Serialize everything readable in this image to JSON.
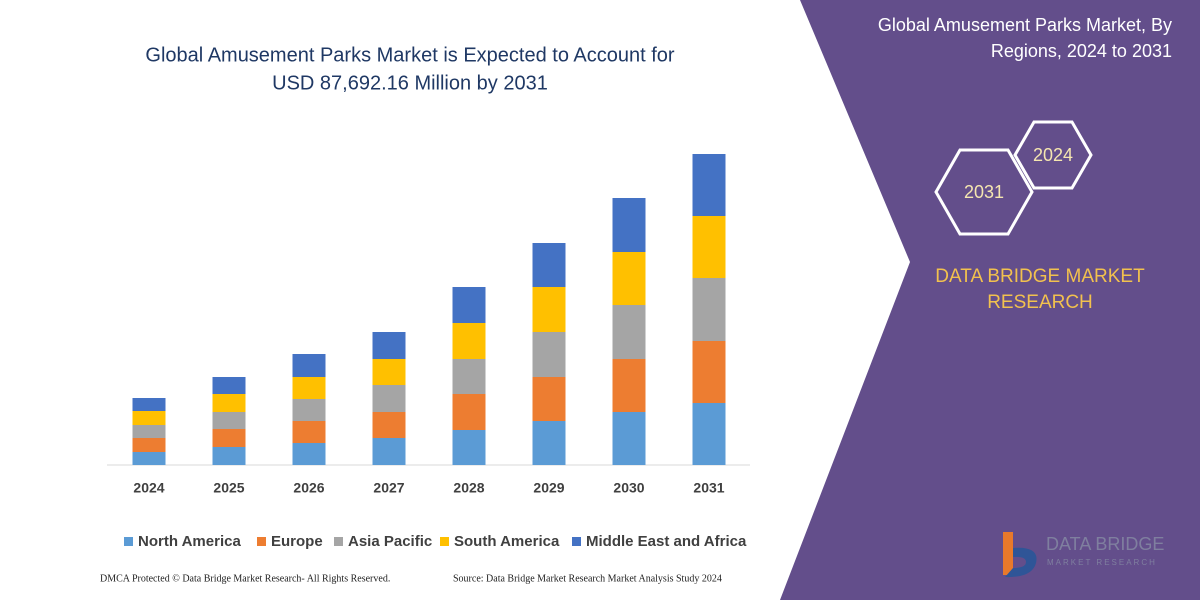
{
  "chart_data": {
    "type": "stacked-bar",
    "title": [
      "Global Amusement Parks Market is Expected to Account for",
      "USD 87,692.16 Million by 2031"
    ],
    "categories": [
      "2024",
      "2025",
      "2026",
      "2027",
      "2028",
      "2029",
      "2030",
      "2031"
    ],
    "series": [
      {
        "name": "North America",
        "color": "#5b9bd5",
        "values": [
          13,
          18,
          22,
          27,
          35,
          44,
          53,
          62
        ]
      },
      {
        "name": "Europe",
        "color": "#ed7d31",
        "values": [
          14,
          18,
          22,
          26,
          36,
          44,
          53,
          62
        ]
      },
      {
        "name": "Asia Pacific",
        "color": "#a5a5a5",
        "values": [
          13,
          17,
          22,
          27,
          35,
          45,
          54,
          63
        ]
      },
      {
        "name": "South America",
        "color": "#ffc000",
        "values": [
          14,
          18,
          22,
          26,
          36,
          45,
          53,
          62
        ]
      },
      {
        "name": "Middle East and Africa",
        "color": "#4472c4",
        "values": [
          13,
          17,
          23,
          27,
          36,
          44,
          54,
          62
        ]
      }
    ]
  },
  "panel": {
    "title": [
      "Global Amusement Parks Market, By",
      "Regions, 2024 to 2031"
    ],
    "hex_start": "2024",
    "hex_end": "2031",
    "brand": [
      "DATA BRIDGE MARKET",
      "RESEARCH"
    ]
  },
  "logo": {
    "name": "DATA BRIDGE",
    "tagline": "MARKET RESEARCH"
  },
  "footer": {
    "left": "DMCA Protected © Data Bridge Market Research-  All Rights Reserved.",
    "right": "Source: Data Bridge Market Research  Market Analysis Study 2024"
  }
}
